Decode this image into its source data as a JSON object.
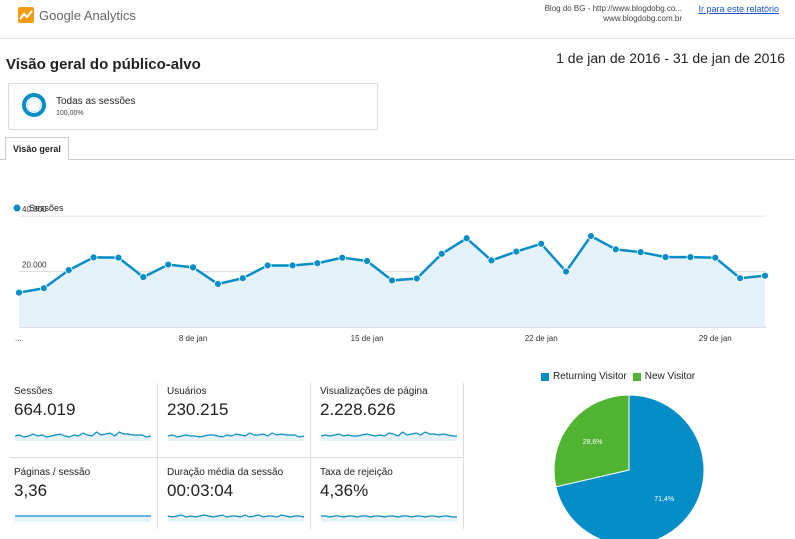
{
  "header": {
    "app_name": "Google Analytics",
    "site_line1": "Blog do BG - http://www.blogdobg.co...",
    "site_line2": "www.blogdobg.com.br",
    "report_link": "Ir para este relatório"
  },
  "page": {
    "title": "Visão geral do público-alvo",
    "date_range": "1 de jan de 2016 - 31 de jan de 2016"
  },
  "segment": {
    "name": "Todas as sessões",
    "percent": "100,00%"
  },
  "tabs": [
    {
      "label": "Visão geral"
    }
  ],
  "colors": {
    "primary": "#058dc7",
    "area_fill": "#e6f2fa",
    "new_visitor": "#50b432"
  },
  "chart_data": [
    {
      "type": "line",
      "legend": "Sessões",
      "y_ticks": [
        "20.000",
        "40.000"
      ],
      "ylim": [
        0,
        44000
      ],
      "x_tick_labels": [
        "...",
        "8 de jan",
        "15 de jan",
        "22 de jan",
        "29 de jan"
      ],
      "x_tick_days": [
        1,
        8,
        15,
        22,
        29
      ],
      "x": [
        1,
        2,
        3,
        4,
        5,
        6,
        7,
        8,
        9,
        10,
        11,
        12,
        13,
        14,
        15,
        16,
        17,
        18,
        19,
        20,
        21,
        22,
        23,
        24,
        25,
        26,
        27,
        28,
        29,
        30,
        31
      ],
      "values": [
        12400,
        14000,
        20500,
        25100,
        25000,
        18000,
        22500,
        21500,
        15500,
        17600,
        22200,
        22200,
        23000,
        25000,
        23800,
        16800,
        17500,
        26400,
        32000,
        24000,
        27200,
        30000,
        20000,
        32800,
        28000,
        27000,
        25200,
        25200,
        25000,
        17600,
        18500
      ]
    },
    {
      "type": "pie",
      "legend": [
        "Returning Visitor",
        "New Visitor"
      ],
      "values": [
        71.4,
        28.6
      ],
      "labels": [
        "71,4%",
        "28,6%"
      ],
      "colors": [
        "#058dc7",
        "#50b432"
      ]
    }
  ],
  "metrics": [
    {
      "label": "Sessões",
      "value": "664.019",
      "spark": [
        5,
        6,
        4,
        5,
        7,
        5,
        6,
        4,
        5,
        6,
        7,
        5,
        4,
        6,
        5,
        8,
        6,
        5,
        9,
        6,
        7,
        8,
        5,
        9,
        7,
        7,
        6,
        6,
        6,
        4,
        5
      ]
    },
    {
      "label": "Usuários",
      "value": "230.215",
      "spark": [
        5,
        6,
        4,
        5,
        6,
        5,
        5,
        4,
        5,
        6,
        6,
        5,
        4,
        6,
        5,
        7,
        6,
        5,
        8,
        6,
        6,
        7,
        5,
        8,
        6,
        7,
        6,
        6,
        6,
        4,
        5
      ]
    },
    {
      "label": "Visualizações de página",
      "value": "2.228.626",
      "spark": [
        5,
        6,
        5,
        6,
        7,
        5,
        6,
        5,
        5,
        6,
        7,
        6,
        5,
        6,
        5,
        8,
        7,
        5,
        9,
        6,
        7,
        8,
        6,
        9,
        7,
        7,
        6,
        7,
        6,
        5,
        5
      ]
    },
    {
      "label": "Páginas / sessão",
      "value": "3,36",
      "spark": [
        6,
        6,
        6,
        6,
        6,
        6,
        6,
        6,
        6,
        6,
        6,
        6,
        6,
        6,
        6,
        6,
        6,
        6,
        6,
        6,
        6,
        6,
        6,
        6,
        6,
        6,
        6,
        6,
        6,
        6,
        6
      ]
    },
    {
      "label": "Duração média da sessão",
      "value": "00:03:04",
      "spark": [
        6,
        5,
        6,
        7,
        5,
        6,
        5,
        6,
        7,
        6,
        5,
        6,
        7,
        5,
        6,
        6,
        5,
        7,
        5,
        6,
        7,
        5,
        6,
        6,
        5,
        7,
        6,
        5,
        6,
        6,
        5
      ]
    },
    {
      "label": "Taxa de rejeição",
      "value": "4,36%",
      "spark": [
        6,
        6,
        5,
        6,
        6,
        5,
        6,
        6,
        5,
        6,
        6,
        5,
        6,
        6,
        5,
        6,
        6,
        5,
        6,
        6,
        5,
        6,
        6,
        5,
        6,
        6,
        5,
        6,
        6,
        5,
        5
      ]
    }
  ]
}
